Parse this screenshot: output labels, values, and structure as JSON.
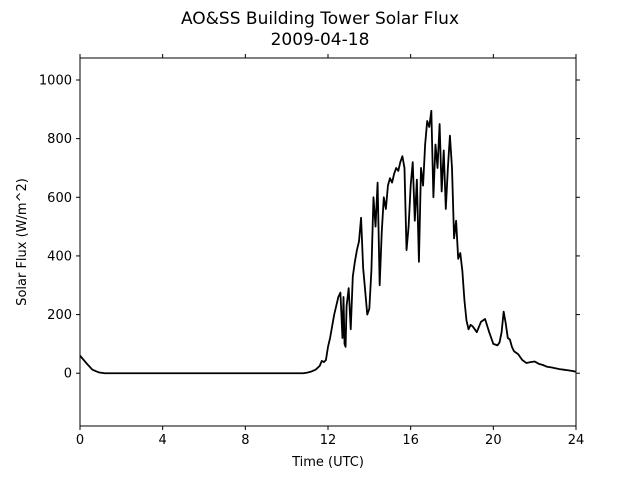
{
  "chart_data": {
    "type": "line",
    "title": "AO&SS Building Tower Solar Flux",
    "subtitle": "2009-04-18",
    "xlabel": "Time (UTC)",
    "ylabel": "Solar Flux (W/m^2)",
    "xlim": [
      0,
      24
    ],
    "ylim": [
      -180,
      1075
    ],
    "x_ticks": [
      0,
      4,
      8,
      12,
      16,
      20,
      24
    ],
    "x_tick_labels": [
      "0",
      "4",
      "8",
      "12",
      "16",
      "20",
      "24"
    ],
    "y_ticks": [
      0,
      200,
      400,
      600,
      800,
      1000
    ],
    "y_tick_labels": [
      "0",
      "200",
      "400",
      "600",
      "800",
      "1000"
    ],
    "grid": false,
    "legend": "none",
    "line_color": "#000000",
    "series": [
      {
        "x": [
          0,
          0.3,
          0.6,
          0.9,
          1.2,
          2,
          4,
          6,
          8,
          10,
          10.8,
          11.0,
          11.2,
          11.4,
          11.6,
          11.7,
          11.8,
          11.9,
          12.0,
          12.1,
          12.2,
          12.3,
          12.4,
          12.5,
          12.6,
          12.7,
          12.75,
          12.8,
          12.85,
          12.9,
          13.0,
          13.1,
          13.2,
          13.3,
          13.4,
          13.5,
          13.6,
          13.7,
          13.8,
          13.9,
          14.0,
          14.1,
          14.2,
          14.3,
          14.4,
          14.5,
          14.6,
          14.7,
          14.8,
          14.9,
          15.0,
          15.1,
          15.2,
          15.3,
          15.4,
          15.5,
          15.6,
          15.7,
          15.8,
          15.9,
          16.0,
          16.1,
          16.2,
          16.3,
          16.4,
          16.5,
          16.6,
          16.7,
          16.8,
          16.9,
          17.0,
          17.1,
          17.2,
          17.3,
          17.4,
          17.5,
          17.6,
          17.7,
          17.8,
          17.9,
          18.0,
          18.1,
          18.2,
          18.3,
          18.4,
          18.5,
          18.6,
          18.7,
          18.8,
          18.9,
          19.0,
          19.2,
          19.4,
          19.6,
          19.8,
          20.0,
          20.2,
          20.3,
          20.4,
          20.5,
          20.6,
          20.7,
          20.8,
          20.9,
          21.0,
          21.2,
          21.4,
          21.6,
          21.8,
          22.0,
          22.2,
          22.4,
          22.6,
          22.8,
          23.0,
          23.2,
          23.4,
          23.6,
          23.8,
          24.0
        ],
        "values": [
          60,
          35,
          12,
          3,
          0,
          0,
          0,
          0,
          0,
          0,
          0,
          2,
          6,
          12,
          25,
          42,
          38,
          45,
          90,
          120,
          160,
          200,
          230,
          260,
          275,
          120,
          260,
          100,
          90,
          230,
          290,
          150,
          330,
          380,
          420,
          450,
          530,
          360,
          280,
          200,
          220,
          350,
          600,
          500,
          650,
          300,
          480,
          600,
          560,
          640,
          665,
          650,
          680,
          700,
          690,
          720,
          740,
          700,
          420,
          500,
          640,
          720,
          520,
          660,
          380,
          700,
          640,
          780,
          860,
          840,
          895,
          600,
          780,
          700,
          850,
          620,
          760,
          560,
          700,
          810,
          700,
          460,
          520,
          390,
          410,
          350,
          250,
          180,
          150,
          165,
          160,
          140,
          175,
          185,
          140,
          100,
          95,
          105,
          140,
          210,
          170,
          120,
          115,
          90,
          75,
          65,
          45,
          35,
          38,
          40,
          32,
          28,
          22,
          20,
          17,
          14,
          12,
          10,
          8,
          5
        ]
      }
    ]
  }
}
